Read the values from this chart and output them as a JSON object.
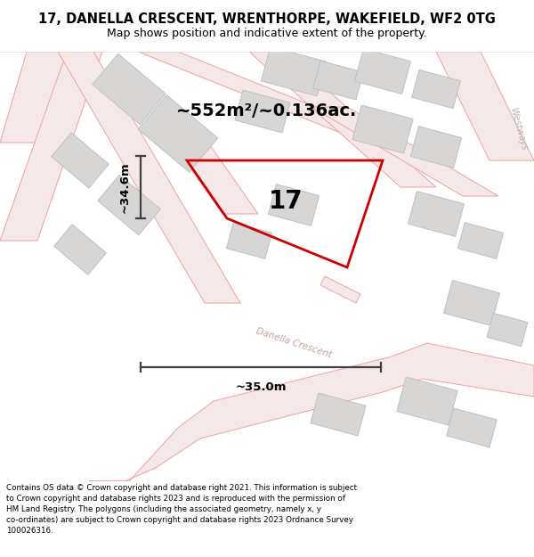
{
  "title_line1": "17, DANELLA CRESCENT, WRENTHORPE, WAKEFIELD, WF2 0TG",
  "title_line2": "Map shows position and indicative extent of the property.",
  "area_text": "~552m²/~0.136ac.",
  "plot_number": "17",
  "dim_width": "~35.0m",
  "dim_height": "~34.6m",
  "street_label": "Danella Crescent",
  "road_label": "Westways",
  "footer_text": "Contains OS data © Crown copyright and database right 2021. This information is subject to Crown copyright and database rights 2023 and is reproduced with the permission of HM Land Registry. The polygons (including the associated geometry, namely x, y co-ordinates) are subject to Crown copyright and database rights 2023 Ordnance Survey 100026316.",
  "map_bg": "#ffffff",
  "plot_fill": "#e8e5e5",
  "plot_edge_color": "#cc0000",
  "building_fill": "#d8d5d5",
  "building_edge": "#bbbbbb",
  "road_line_color": "#f0a0a0",
  "road_fill_color": "#f5e8e8",
  "dim_line_color": "#404040",
  "title_bg": "#ffffff",
  "footer_bg": "#ffffff",
  "street_text_color": "#c8a0a0",
  "road_text_color": "#b8b0b0"
}
